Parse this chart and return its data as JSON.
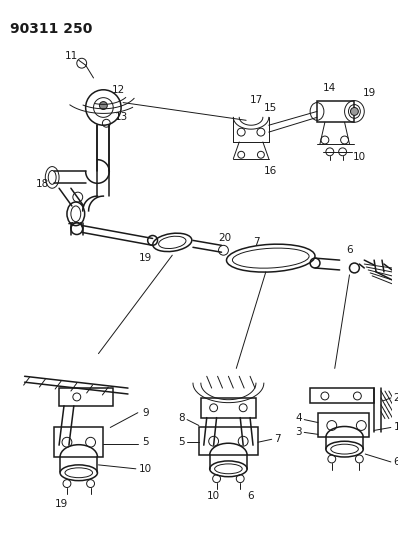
{
  "title": "90311 250",
  "bg_color": "#ffffff",
  "line_color": "#1a1a1a",
  "title_fontsize": 10,
  "label_fontsize": 7.5,
  "fig_width": 3.98,
  "fig_height": 5.33,
  "dpi": 100
}
